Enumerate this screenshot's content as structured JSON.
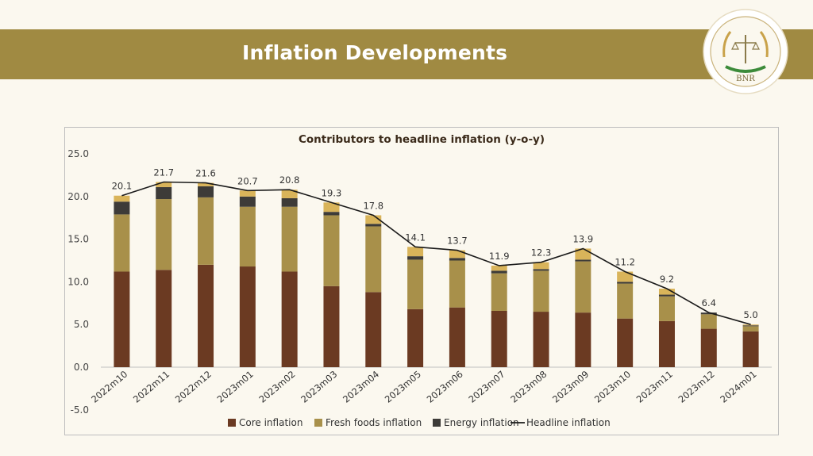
{
  "page": {
    "title": "Inflation Developments"
  },
  "logo": {
    "top_text": "NATIONAL BANK OF RWANDA · BANQUE NATIONALE DU RWANDA",
    "abbr": "BNR",
    "colors": {
      "ring": "#c9b27a",
      "gold": "#c9a24a",
      "green": "#3c8b3a"
    }
  },
  "colors": {
    "band": "#a08a42",
    "core": "#6b3a22",
    "fresh": "#a8904a",
    "energy": "#3d3b38",
    "headline_stripe": "#d9b45a",
    "headline_line": "#1a1a1a"
  },
  "chart_data": {
    "type": "bar",
    "stacked": true,
    "title": "Contributors to headline inflation (y-o-y)",
    "categories": [
      "2022m10",
      "2022m11",
      "2022m12",
      "2023m01",
      "2023m02",
      "2023m03",
      "2023m04",
      "2023m05",
      "2023m06",
      "2023m07",
      "2023m08",
      "2023m09",
      "2023m10",
      "2023m11",
      "2023m12",
      "2024m01"
    ],
    "ylim": [
      -5,
      25
    ],
    "yticks": [
      "-5.0",
      "0.0",
      "5.0",
      "10.0",
      "15.0",
      "20.0",
      "25.0"
    ],
    "grid": false,
    "legend_position": "bottom",
    "series": [
      {
        "name": "Core inflation",
        "kind": "bar",
        "values": [
          11.2,
          11.4,
          12.0,
          11.8,
          11.2,
          9.5,
          8.8,
          6.8,
          7.0,
          6.6,
          6.5,
          6.4,
          5.7,
          5.4,
          4.5,
          4.2
        ]
      },
      {
        "name": "Fresh foods inflation",
        "kind": "bar",
        "values": [
          6.7,
          8.3,
          7.9,
          7.0,
          7.6,
          8.3,
          7.7,
          5.8,
          5.5,
          4.4,
          4.8,
          6.0,
          4.1,
          2.9,
          1.7,
          0.6
        ]
      },
      {
        "name": "Energy inflation",
        "kind": "bar",
        "values": [
          1.5,
          1.4,
          1.3,
          1.2,
          1.0,
          0.4,
          0.3,
          0.4,
          0.3,
          0.3,
          0.2,
          0.2,
          0.2,
          0.2,
          0.2,
          0.1
        ]
      },
      {
        "name": "Headline inflation",
        "kind": "line",
        "values": [
          20.1,
          21.7,
          21.6,
          20.7,
          20.8,
          19.3,
          17.8,
          14.1,
          13.7,
          11.9,
          12.3,
          13.9,
          11.2,
          9.2,
          6.4,
          5.0
        ],
        "labels": [
          "20.1",
          "21.7",
          "21.6",
          "20.7",
          "20.8",
          "19.3",
          "17.8",
          "14.1",
          "13.7",
          "11.9",
          "12.3",
          "13.9",
          "11.2",
          "9.2",
          "6.4",
          "5.0"
        ]
      }
    ]
  }
}
